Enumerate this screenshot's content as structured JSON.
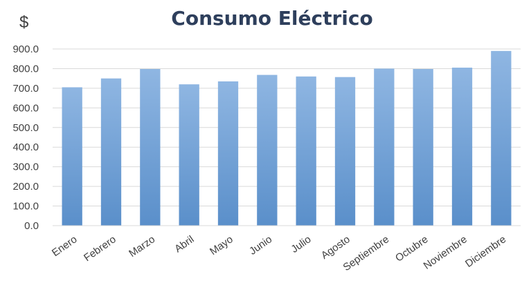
{
  "chart_data": {
    "type": "bar",
    "title": "Consumo Eléctrico",
    "ylabel": "$",
    "xlabel": "",
    "categories": [
      "Enero",
      "Febrero",
      "Marzo",
      "Abril",
      "Mayo",
      "Junio",
      "Julio",
      "Agosto",
      "Septiembre",
      "Octubre",
      "Noviembre",
      "Diciembre"
    ],
    "values": [
      705,
      750,
      798,
      720,
      735,
      768,
      760,
      757,
      800,
      798,
      805,
      890
    ],
    "ylim": [
      0,
      900
    ],
    "yticks": [
      "0.0",
      "100.0",
      "200.0",
      "300.0",
      "400.0",
      "500.0",
      "600.0",
      "700.0",
      "800.0",
      "900.0"
    ],
    "grid": true,
    "legend": "none",
    "colors": {
      "bar_top": "#8fb6e2",
      "bar_bottom": "#5a8fca",
      "title": "#2e3f5c",
      "text": "#404040",
      "grid": "#d9d9d9"
    }
  }
}
